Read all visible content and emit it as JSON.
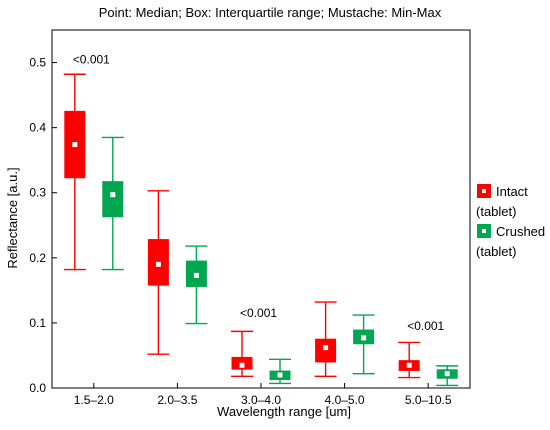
{
  "chart_data": {
    "type": "box",
    "title": "Point: Median; Box: Interquartile range; Mustache: Min-Max",
    "xlabel": "Wavelength range [um]",
    "ylabel": "Reflectance [a.u.]",
    "categories": [
      "1.5–2.0",
      "2.0–3.5",
      "3.0–4.0",
      "4.0–5.0",
      "5.0–10.5"
    ],
    "ylim": [
      0,
      0.55
    ],
    "yticks": [
      "0.0",
      "0.1",
      "0.2",
      "0.3",
      "0.4",
      "0.5"
    ],
    "ytick_values": [
      0,
      0.1,
      0.2,
      0.3,
      0.4,
      0.5
    ],
    "legend_position": "right",
    "series": [
      {
        "name": "Intact (tablet)",
        "legend_line1": "Intact",
        "legend_line2": "(tablet)",
        "color": "#ff0000",
        "boxes": [
          {
            "min": 0.182,
            "q1": 0.323,
            "median": 0.374,
            "q3": 0.425,
            "max": 0.482
          },
          {
            "min": 0.052,
            "q1": 0.158,
            "median": 0.19,
            "q3": 0.228,
            "max": 0.303
          },
          {
            "min": 0.018,
            "q1": 0.029,
            "median": 0.035,
            "q3": 0.047,
            "max": 0.087
          },
          {
            "min": 0.018,
            "q1": 0.04,
            "median": 0.062,
            "q3": 0.075,
            "max": 0.132
          },
          {
            "min": 0.016,
            "q1": 0.027,
            "median": 0.035,
            "q3": 0.042,
            "max": 0.07
          }
        ]
      },
      {
        "name": "Crushed (tablet)",
        "legend_line1": "Crushed",
        "legend_line2": "(tablet)",
        "color": "#00a650",
        "boxes": [
          {
            "min": 0.182,
            "q1": 0.263,
            "median": 0.297,
            "q3": 0.317,
            "max": 0.385
          },
          {
            "min": 0.099,
            "q1": 0.156,
            "median": 0.173,
            "q3": 0.195,
            "max": 0.218
          },
          {
            "min": 0.007,
            "q1": 0.013,
            "median": 0.02,
            "q3": 0.026,
            "max": 0.044
          },
          {
            "min": 0.022,
            "q1": 0.068,
            "median": 0.077,
            "q3": 0.089,
            "max": 0.112
          },
          {
            "min": 0.004,
            "q1": 0.015,
            "median": 0.022,
            "q3": 0.028,
            "max": 0.034
          }
        ]
      }
    ],
    "annotations": [
      {
        "text": "<0.001",
        "category": 0,
        "y": 0.505
      },
      {
        "text": "<0.001",
        "category": 2,
        "y": 0.115
      },
      {
        "text": "<0.001",
        "category": 4,
        "y": 0.095
      }
    ]
  }
}
